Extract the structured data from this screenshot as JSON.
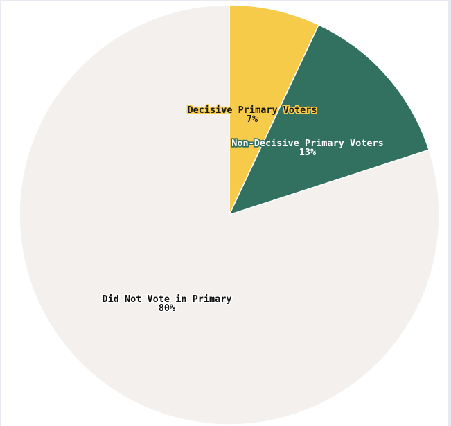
{
  "chart_data": {
    "type": "pie",
    "slices": [
      {
        "label": "Decisive Primary Voters",
        "value": 7,
        "display": "7%",
        "color": "#f7cb4a",
        "text_color": "#1a1a1a",
        "halo": "#f7cb4a"
      },
      {
        "label": "Non-Decisive Primary Voters",
        "value": 13,
        "display": "13%",
        "color": "#327060",
        "text_color": "#ffffff",
        "halo": "#327060"
      },
      {
        "label": "Did Not Vote in Primary",
        "value": 80,
        "display": "80%",
        "color": "#f3f0ed",
        "text_color": "#111111",
        "halo": "#ffffff"
      }
    ],
    "start_angle": "12 o'clock",
    "direction": "clockwise",
    "legend": "none"
  }
}
